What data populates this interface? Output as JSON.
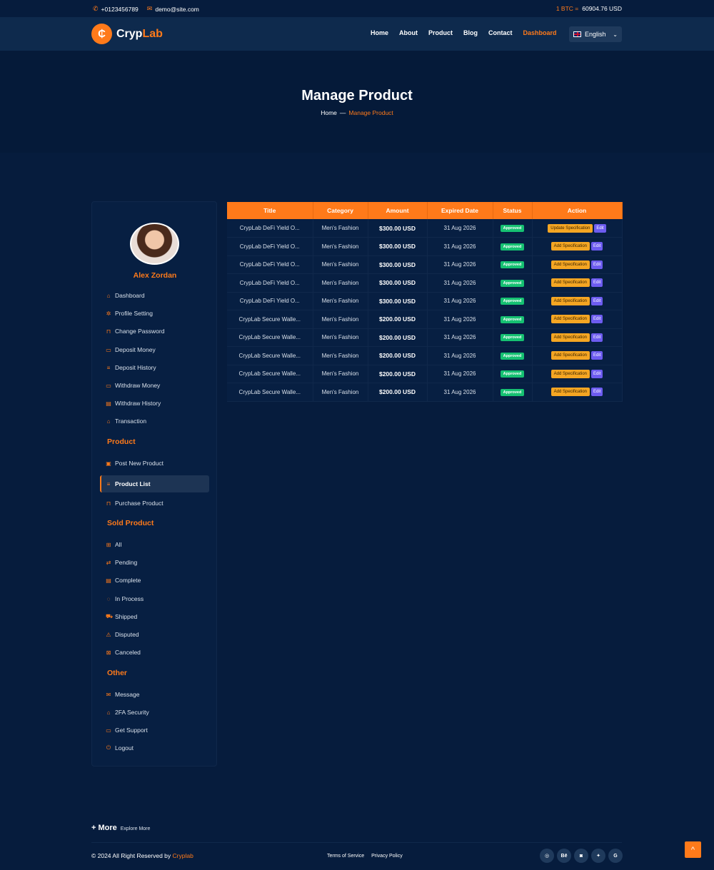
{
  "topbar": {
    "phone": "+0123456789",
    "email": "demo@site.com",
    "btc_label": "1 BTC =",
    "btc_value": "60904.76 USD"
  },
  "header": {
    "logo_a": "Cryp",
    "logo_b": "Lab",
    "logo_mark": "₵",
    "nav": [
      "Home",
      "About",
      "Product",
      "Blog",
      "Contact",
      "Dashboard"
    ],
    "language": "English"
  },
  "hero": {
    "title": "Manage Product",
    "crumb_home": "Home",
    "crumb_sep": "—",
    "crumb_current": "Manage Product"
  },
  "sidebar": {
    "username": "Alex Zordan",
    "account_items": [
      "Dashboard",
      "Profile Setting",
      "Change Password",
      "Deposit Money",
      "Deposit History",
      "Withdraw Money",
      "Withdraw History",
      "Transaction"
    ],
    "product_title": "Product",
    "product_items": [
      "Post New Product",
      "Product List",
      "Purchase Product"
    ],
    "sold_title": "Sold Product",
    "sold_items": [
      "All",
      "Pending",
      "Complete",
      "In Process",
      "Shipped",
      "Disputed",
      "Canceled"
    ],
    "other_title": "Other",
    "other_items": [
      "Message",
      "2FA Security",
      "Get Support",
      "Logout"
    ]
  },
  "table": {
    "headers": [
      "Title",
      "Category",
      "Amount",
      "Expired Date",
      "Status",
      "Action"
    ],
    "rows": [
      {
        "title": "CrypLab DeFi Yield O...",
        "category": "Men's Fashion",
        "amount": "$300.00 USD",
        "date": "31 Aug 2026",
        "status": "Approved",
        "spec": "Update Specification",
        "edit": "Edit"
      },
      {
        "title": "CrypLab DeFi Yield O...",
        "category": "Men's Fashion",
        "amount": "$300.00 USD",
        "date": "31 Aug 2026",
        "status": "Approved",
        "spec": "Add Specification",
        "edit": "Edit"
      },
      {
        "title": "CrypLab DeFi Yield O...",
        "category": "Men's Fashion",
        "amount": "$300.00 USD",
        "date": "31 Aug 2026",
        "status": "Approved",
        "spec": "Add Specification",
        "edit": "Edit"
      },
      {
        "title": "CrypLab DeFi Yield O...",
        "category": "Men's Fashion",
        "amount": "$300.00 USD",
        "date": "31 Aug 2026",
        "status": "Approved",
        "spec": "Add Specification",
        "edit": "Edit"
      },
      {
        "title": "CrypLab DeFi Yield O...",
        "category": "Men's Fashion",
        "amount": "$300.00 USD",
        "date": "31 Aug 2026",
        "status": "Approved",
        "spec": "Add Specification",
        "edit": "Edit"
      },
      {
        "title": "CrypLab Secure Walle...",
        "category": "Men's Fashion",
        "amount": "$200.00 USD",
        "date": "31 Aug 2026",
        "status": "Approved",
        "spec": "Add Specification",
        "edit": "Edit"
      },
      {
        "title": "CrypLab Secure Walle...",
        "category": "Men's Fashion",
        "amount": "$200.00 USD",
        "date": "31 Aug 2026",
        "status": "Approved",
        "spec": "Add Specification",
        "edit": "Edit"
      },
      {
        "title": "CrypLab Secure Walle...",
        "category": "Men's Fashion",
        "amount": "$200.00 USD",
        "date": "31 Aug 2026",
        "status": "Approved",
        "spec": "Add Specification",
        "edit": "Edit"
      },
      {
        "title": "CrypLab Secure Walle...",
        "category": "Men's Fashion",
        "amount": "$200.00 USD",
        "date": "31 Aug 2026",
        "status": "Approved",
        "spec": "Add Specification",
        "edit": "Edit"
      },
      {
        "title": "CrypLab Secure Walle...",
        "category": "Men's Fashion",
        "amount": "$200.00 USD",
        "date": "31 Aug 2026",
        "status": "Approved",
        "spec": "Add Specification",
        "edit": "Edit"
      }
    ]
  },
  "footer": {
    "more_big": "+ More",
    "more_small": "Explore More",
    "copyright": "© 2024 All Right Reserved by",
    "brand": "Cryplab",
    "links": [
      "Terms of Service",
      "Privacy Policy"
    ],
    "socials": [
      {
        "name": "dribbble-icon",
        "glyph": "◎"
      },
      {
        "name": "behance-icon",
        "glyph": "Bē"
      },
      {
        "name": "instagram-icon",
        "glyph": "◙"
      },
      {
        "name": "twitter-icon",
        "glyph": "✦"
      },
      {
        "name": "google-icon",
        "glyph": "G"
      }
    ],
    "to_top": "^"
  }
}
